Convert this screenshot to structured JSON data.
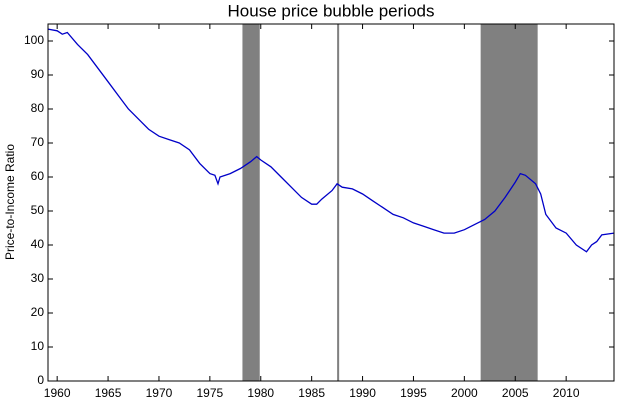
{
  "chart_data": {
    "type": "line",
    "title": "House price bubble periods",
    "y_label": "Price-to-Income Ratio",
    "x": [
      1959.1,
      1960,
      1960.5,
      1961,
      1962,
      1963,
      1964,
      1965,
      1966,
      1967,
      1968,
      1969,
      1970,
      1971,
      1972,
      1973,
      1974,
      1975,
      1975.5,
      1975.8,
      1976,
      1977,
      1978,
      1979,
      1979.6,
      1980,
      1981,
      1982,
      1983,
      1984,
      1985,
      1985.5,
      1986,
      1987,
      1987.5,
      1988,
      1989,
      1990,
      1991,
      1992,
      1993,
      1994,
      1995,
      1996,
      1997,
      1998,
      1999,
      2000,
      2001,
      2002,
      2003,
      2004,
      2005,
      2005.5,
      2006,
      2007,
      2007.5,
      2008,
      2009,
      2010,
      2011,
      2012,
      2012.5,
      2013,
      2013.5,
      2014.7
    ],
    "series": [
      {
        "color": "#0000c8",
        "values": [
          103.5,
          103,
          102,
          102.5,
          99,
          96,
          92,
          88,
          84,
          80,
          77,
          74,
          72,
          71,
          70,
          68,
          64,
          61,
          60.5,
          58,
          60,
          61,
          62.5,
          64.5,
          66,
          65,
          63,
          60,
          57,
          54,
          52,
          52,
          53.5,
          56,
          58,
          57,
          56.5,
          55,
          53,
          51,
          49,
          48,
          46.5,
          45.5,
          44.5,
          43.5,
          43.5,
          44.5,
          46,
          47.5,
          50,
          54,
          58.5,
          61,
          60.5,
          58,
          55,
          49,
          45,
          43.5,
          40,
          38,
          40,
          41,
          43,
          43.5
        ]
      }
    ],
    "shaded_periods": [
      [
        1978.2,
        1979.9
      ],
      [
        1987.5,
        1987.7
      ],
      [
        2001.6,
        2007.2
      ]
    ],
    "shade_color": "#808080",
    "xlim": [
      1959.1,
      2014.7
    ],
    "ylim": [
      0,
      105
    ],
    "xticks": [
      1960,
      1965,
      1970,
      1975,
      1980,
      1985,
      1990,
      1995,
      2000,
      2005,
      2010
    ],
    "yticks": [
      0,
      10,
      20,
      30,
      40,
      50,
      60,
      70,
      80,
      90,
      100
    ]
  }
}
